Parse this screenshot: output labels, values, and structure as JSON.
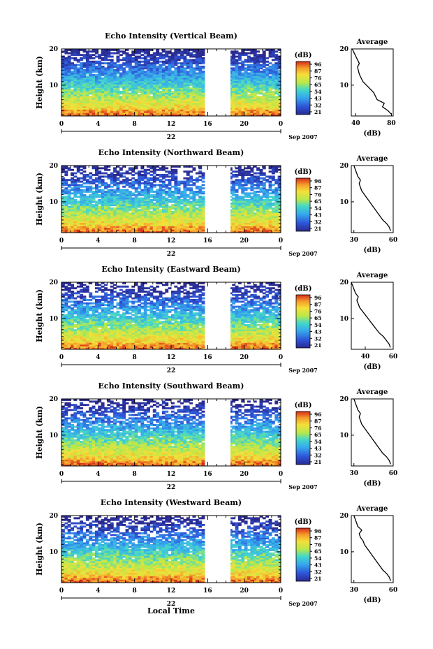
{
  "figure": {
    "x_axis_label": "Local Time",
    "date_suffix": "Sep 2007",
    "colorbar_unit": "(dB)",
    "colorbar_ticks": [
      "96",
      "87",
      "76",
      "65",
      "54",
      "43",
      "32",
      "21"
    ],
    "average_title": "Average",
    "average_xlabel": "(dB)",
    "height_label": "Height (km)",
    "time_ticks": [
      "0",
      "4",
      "8",
      "12",
      "16",
      "20",
      "0"
    ],
    "height_ticks": [
      "20",
      "10"
    ]
  },
  "chart_data": [
    {
      "type": "heatmap",
      "title": "Echo Intensity (Vertical Beam)",
      "day_label": "22",
      "xlabel": "Local Time",
      "ylabel": "Height (km)",
      "xlim": [
        0,
        24
      ],
      "ylim": [
        1.5,
        20
      ],
      "data_gap_hours": [
        [
          15.7,
          18.5
        ]
      ],
      "colorbar": {
        "unit": "dB",
        "range": [
          21,
          96
        ],
        "ticks": [
          96,
          87,
          76,
          65,
          54,
          43,
          32,
          21
        ]
      },
      "average_profile": {
        "x_ticks": [
          "40",
          "80"
        ],
        "xlim": [
          35,
          82
        ],
        "height": [
          2,
          3,
          4,
          5,
          6,
          7,
          8,
          9,
          10,
          11,
          12,
          13,
          14,
          15,
          16,
          17,
          18,
          19,
          20
        ],
        "db": [
          80,
          76,
          70,
          72,
          64,
          62,
          60,
          56,
          52,
          48,
          46,
          44,
          43,
          42,
          44,
          42,
          40,
          38,
          36
        ]
      }
    },
    {
      "type": "heatmap",
      "title": "Echo Intensity (Northward Beam)",
      "day_label": "22",
      "xlabel": "Local Time",
      "ylabel": "Height (km)",
      "xlim": [
        0,
        24
      ],
      "ylim": [
        1.5,
        20
      ],
      "data_gap_hours": [
        [
          15.7,
          18.5
        ]
      ],
      "colorbar": {
        "unit": "dB",
        "range": [
          21,
          96
        ],
        "ticks": [
          96,
          87,
          76,
          65,
          54,
          43,
          32,
          21
        ]
      },
      "average_profile": {
        "x_ticks": [
          "30",
          "60"
        ],
        "xlim": [
          28,
          60
        ],
        "height": [
          2,
          3,
          4,
          5,
          6,
          7,
          8,
          9,
          10,
          11,
          12,
          13,
          14,
          15,
          16,
          17,
          18,
          19,
          20
        ],
        "db": [
          58,
          57,
          55,
          52,
          50,
          48,
          46,
          44,
          42,
          40,
          38,
          36,
          35,
          34,
          35,
          33,
          32,
          31,
          30
        ]
      }
    },
    {
      "type": "heatmap",
      "title": "Echo Intensity (Eastward Beam)",
      "day_label": "22",
      "xlabel": "Local Time",
      "ylabel": "Height (km)",
      "xlim": [
        0,
        24
      ],
      "ylim": [
        1.5,
        20
      ],
      "data_gap_hours": [
        [
          15.7,
          18.5
        ]
      ],
      "colorbar": {
        "unit": "dB",
        "range": [
          21,
          96
        ],
        "ticks": [
          96,
          87,
          76,
          65,
          54,
          43,
          32,
          21
        ]
      },
      "average_profile": {
        "x_ticks": [
          "40",
          "60"
        ],
        "xlim": [
          30,
          60
        ],
        "height": [
          2,
          3,
          4,
          5,
          6,
          7,
          8,
          9,
          10,
          11,
          12,
          13,
          14,
          15,
          16,
          17,
          18,
          19,
          20
        ],
        "db": [
          58,
          57,
          55,
          53,
          50,
          48,
          46,
          44,
          42,
          40,
          38,
          36,
          35,
          34,
          35,
          33,
          32,
          31,
          30
        ]
      }
    },
    {
      "type": "heatmap",
      "title": "Echo Intensity (Southward Beam)",
      "day_label": "22",
      "xlabel": "Local Time",
      "ylabel": "Height (km)",
      "xlim": [
        0,
        24
      ],
      "ylim": [
        1.5,
        20
      ],
      "data_gap_hours": [
        [
          15.7,
          18.5
        ]
      ],
      "colorbar": {
        "unit": "dB",
        "range": [
          21,
          96
        ],
        "ticks": [
          96,
          87,
          76,
          65,
          54,
          43,
          32,
          21
        ]
      },
      "average_profile": {
        "x_ticks": [
          "30",
          "60"
        ],
        "xlim": [
          28,
          60
        ],
        "height": [
          2,
          3,
          4,
          5,
          6,
          7,
          8,
          9,
          10,
          11,
          12,
          13,
          14,
          15,
          16,
          17,
          18,
          19,
          20
        ],
        "db": [
          58,
          57,
          55,
          52,
          50,
          48,
          46,
          44,
          42,
          40,
          38,
          36,
          35,
          34,
          35,
          33,
          32,
          31,
          30
        ]
      }
    },
    {
      "type": "heatmap",
      "title": "Echo Intensity (Westward Beam)",
      "day_label": "22",
      "xlabel": "Local Time",
      "ylabel": "Height (km)",
      "xlim": [
        0,
        24
      ],
      "ylim": [
        1.5,
        20
      ],
      "data_gap_hours": [
        [
          15.7,
          18.5
        ]
      ],
      "colorbar": {
        "unit": "dB",
        "range": [
          21,
          96
        ],
        "ticks": [
          96,
          87,
          76,
          65,
          54,
          43,
          32,
          21
        ]
      },
      "average_profile": {
        "x_ticks": [
          "30",
          "60"
        ],
        "xlim": [
          28,
          60
        ],
        "height": [
          2,
          3,
          4,
          5,
          6,
          7,
          8,
          9,
          10,
          11,
          12,
          13,
          14,
          15,
          16,
          17,
          18,
          19,
          20
        ],
        "db": [
          58,
          57,
          55,
          52,
          50,
          48,
          46,
          44,
          42,
          40,
          38,
          37,
          35,
          34,
          36,
          33,
          32,
          31,
          30
        ]
      }
    }
  ]
}
